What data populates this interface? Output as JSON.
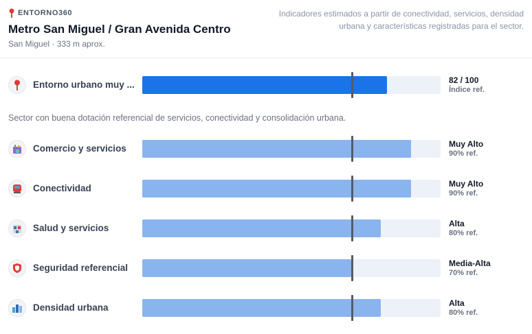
{
  "header": {
    "brand": "ENTORNO360",
    "title": "Metro San Miguel / Gran Avenida Centro",
    "subtitle": "San Miguel · 333 m aprox.",
    "note": "Indicadores estimados a partir de conectividad, servicios, densidad urbana y características registradas para el sector."
  },
  "summary": {
    "label": "Entorno urbano muy ...",
    "value": "82 / 100",
    "sub": "Índice ref.",
    "score": 82,
    "icon": "map-pin-icon",
    "color": "#1a73e8"
  },
  "description": "Sector con buena dotación referencial de servicios, conectividad y consolidación urbana.",
  "indicators": [
    {
      "label": "Comercio y servicios",
      "value": "Muy Alto",
      "sub": "90% ref.",
      "score": 90,
      "icon": "shopping-bag-icon"
    },
    {
      "label": "Conectividad",
      "value": "Muy Alto",
      "sub": "90% ref.",
      "score": 90,
      "icon": "metro-train-icon"
    },
    {
      "label": "Salud y servicios",
      "value": "Alta",
      "sub": "80% ref.",
      "score": 80,
      "icon": "hospital-icon"
    },
    {
      "label": "Seguridad referencial",
      "value": "Media-Alta",
      "sub": "70% ref.",
      "score": 70,
      "icon": "shield-icon"
    },
    {
      "label": "Densidad urbana",
      "value": "Alta",
      "sub": "80% ref.",
      "score": 80,
      "icon": "buildings-icon"
    }
  ],
  "colors": {
    "accent": "#1a73e8",
    "bar": "#8ab4ee",
    "track": "#edf1f8",
    "marker": "#555b66"
  }
}
